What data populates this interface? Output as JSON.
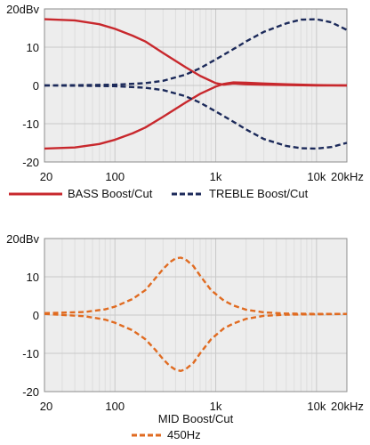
{
  "chart_data": [
    {
      "type": "line",
      "x_scale": "log",
      "xlim": [
        20,
        20000
      ],
      "ylim": [
        -20,
        20
      ],
      "grid": true,
      "legend_position": "bottom",
      "x_ticks": [
        "20",
        "100",
        "1k",
        "10k",
        "20kHz"
      ],
      "y_ticks": [
        "20dBv",
        "10",
        "0",
        "-10",
        "-20"
      ],
      "series": [
        {
          "name": "BASS Boost/Cut",
          "color": "#c8282d",
          "style": "solid",
          "curves": [
            {
              "x": [
                20,
                40,
                70,
                100,
                150,
                200,
                300,
                500,
                700,
                1000,
                1200,
                1500,
                2000,
                3000,
                5000,
                10000,
                20000
              ],
              "y": [
                17.3,
                17.0,
                16.0,
                14.8,
                13.0,
                11.5,
                8.5,
                4.8,
                2.5,
                0.6,
                0.2,
                0.5,
                0.3,
                0.2,
                0.1,
                0.0,
                0.0
              ]
            },
            {
              "x": [
                20,
                40,
                70,
                100,
                150,
                200,
                300,
                500,
                700,
                1000,
                1200,
                1500,
                2000,
                3000,
                5000,
                10000,
                20000
              ],
              "y": [
                -16.5,
                -16.2,
                -15.3,
                -14.2,
                -12.5,
                -11.0,
                -8.2,
                -4.5,
                -2.2,
                -0.3,
                0.4,
                0.8,
                0.7,
                0.5,
                0.3,
                0.1,
                0.0
              ]
            }
          ]
        },
        {
          "name": "TREBLE Boost/Cut",
          "color": "#1c2a5a",
          "style": "dashed",
          "curves": [
            {
              "x": [
                20,
                50,
                100,
                200,
                300,
                500,
                700,
                1000,
                1500,
                2000,
                3000,
                5000,
                7000,
                10000,
                14000,
                20000
              ],
              "y": [
                0.0,
                0.1,
                0.2,
                0.6,
                1.2,
                2.8,
                4.5,
                6.8,
                9.5,
                11.5,
                14.0,
                16.2,
                17.2,
                17.3,
                16.5,
                14.5
              ]
            },
            {
              "x": [
                20,
                50,
                100,
                200,
                300,
                500,
                700,
                1000,
                1500,
                2000,
                3000,
                5000,
                7000,
                10000,
                14000,
                20000
              ],
              "y": [
                0.0,
                -0.1,
                -0.2,
                -0.6,
                -1.2,
                -2.8,
                -4.5,
                -6.8,
                -9.5,
                -11.5,
                -14.0,
                -15.8,
                -16.4,
                -16.5,
                -16.1,
                -15.0
              ]
            }
          ]
        }
      ]
    },
    {
      "type": "line",
      "x_scale": "log",
      "xlim": [
        20,
        20000
      ],
      "ylim": [
        -20,
        20
      ],
      "grid": true,
      "legend_position": "bottom",
      "x_ticks": [
        "20",
        "100",
        "1k",
        "10k",
        "20kHz"
      ],
      "y_ticks": [
        "20dBv",
        "10",
        "0",
        "-10",
        "-20"
      ],
      "title": "MID Boost/Cut",
      "series": [
        {
          "name": "450Hz",
          "color": "#e06b21",
          "style": "dashed",
          "curves": [
            {
              "x": [
                20,
                50,
                80,
                100,
                150,
                200,
                250,
                300,
                350,
                400,
                450,
                500,
                600,
                700,
                900,
                1200,
                1500,
                2000,
                3000,
                5000,
                10000,
                20000
              ],
              "y": [
                0.5,
                0.8,
                1.5,
                2.2,
                4.2,
                6.5,
                9.5,
                12.0,
                13.8,
                14.8,
                15.0,
                14.6,
                12.8,
                10.3,
                6.5,
                3.8,
                2.5,
                1.4,
                0.7,
                0.4,
                0.3,
                0.3
              ]
            },
            {
              "x": [
                20,
                50,
                80,
                100,
                150,
                200,
                250,
                300,
                350,
                400,
                450,
                500,
                600,
                700,
                900,
                1200,
                1500,
                2000,
                3000,
                5000,
                10000,
                20000
              ],
              "y": [
                0.3,
                -0.3,
                -1.2,
                -2.0,
                -4.0,
                -6.3,
                -9.0,
                -11.5,
                -13.3,
                -14.3,
                -14.6,
                -14.2,
                -12.5,
                -10.0,
                -6.3,
                -3.5,
                -2.2,
                -1.0,
                -0.2,
                0.1,
                0.2,
                0.3
              ]
            }
          ]
        }
      ]
    }
  ]
}
